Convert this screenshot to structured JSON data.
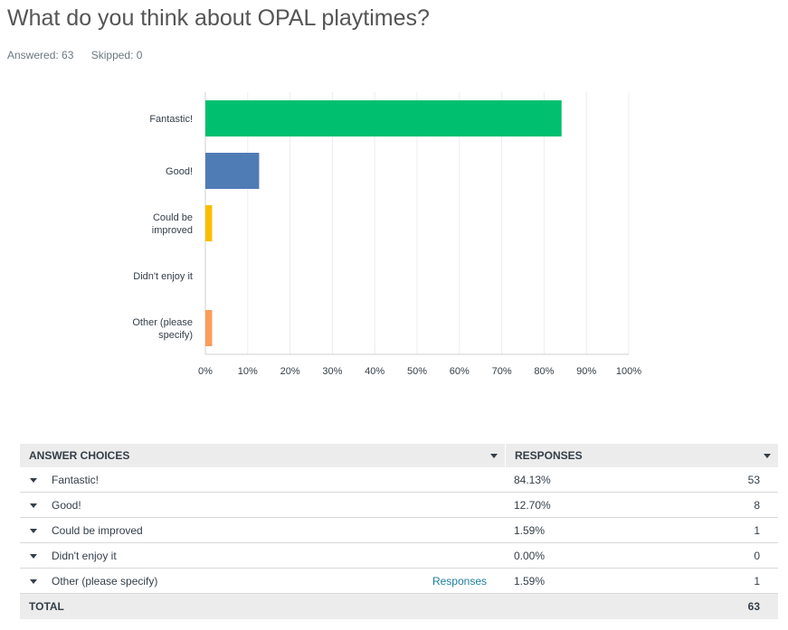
{
  "question": "What do you think about OPAL playtimes?",
  "answered": "Answered: 63",
  "skipped": "Skipped: 0",
  "chart_data": {
    "type": "bar",
    "orientation": "horizontal",
    "categories": [
      "Fantastic!",
      "Good!",
      "Could be improved",
      "Didn't enjoy it",
      "Other (please specify)"
    ],
    "category_lines": [
      [
        "Fantastic!"
      ],
      [
        "Good!"
      ],
      [
        "Could be",
        "improved"
      ],
      [
        "Didn't enjoy it"
      ],
      [
        "Other (please",
        "specify)"
      ]
    ],
    "values": [
      84.13,
      12.7,
      1.59,
      0.0,
      1.59
    ],
    "colors": [
      "#00bf6f",
      "#507cb6",
      "#f9be00",
      "#6bc8cd",
      "#ff9b57"
    ],
    "xlim": [
      0,
      100
    ],
    "ticks": [
      "0%",
      "10%",
      "20%",
      "30%",
      "40%",
      "50%",
      "60%",
      "70%",
      "80%",
      "90%",
      "100%"
    ],
    "grid": true
  },
  "table": {
    "header_choice": "ANSWER CHOICES",
    "header_responses": "RESPONSES",
    "rows": [
      {
        "label": "Fantastic!",
        "link": "",
        "pct": "84.13%",
        "count": "53"
      },
      {
        "label": "Good!",
        "link": "",
        "pct": "12.70%",
        "count": "8"
      },
      {
        "label": "Could be improved",
        "link": "",
        "pct": "1.59%",
        "count": "1"
      },
      {
        "label": "Didn't enjoy it",
        "link": "",
        "pct": "0.00%",
        "count": "0"
      },
      {
        "label": "Other (please specify)",
        "link": "Responses",
        "pct": "1.59%",
        "count": "1"
      }
    ],
    "total_label": "TOTAL",
    "total_value": "63"
  }
}
